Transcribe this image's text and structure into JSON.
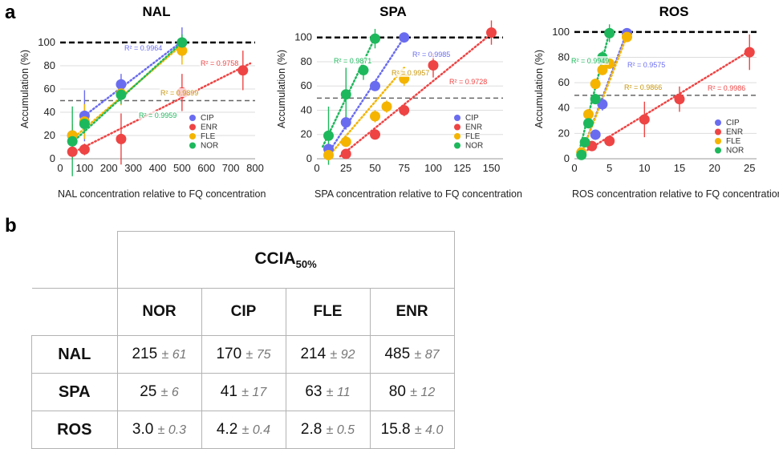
{
  "panel_labels": {
    "a": "a",
    "b": "b"
  },
  "colors": {
    "CIP": "#6a6cf0",
    "ENR": "#ee4444",
    "FLE": "#f4b400",
    "NOR": "#1eb85c",
    "FLE_r2": "#c8960a",
    "ref100": "#000000",
    "ref50": "#666666"
  },
  "legend_order": [
    "CIP",
    "ENR",
    "FLE",
    "NOR"
  ],
  "chart_data": [
    {
      "type": "scatter",
      "title": "NAL",
      "xlabel": "NAL concentration relative to FQ concentration",
      "ylabel": "Accumulation (%)",
      "xlim": [
        0,
        800
      ],
      "ylim": [
        0,
        120
      ],
      "xticks": [
        0,
        100,
        200,
        300,
        400,
        500,
        600,
        700,
        800
      ],
      "yticks": [
        0,
        20,
        40,
        60,
        80,
        100
      ],
      "reference_lines": [
        100,
        50
      ],
      "legend_position": "center-right",
      "series": [
        {
          "name": "CIP",
          "r2": "R² = 0.9964",
          "fit": [
            [
              100,
              37
            ],
            [
              500,
              101
            ]
          ],
          "points": [
            {
              "x": 50,
              "y": 20,
              "err": 3
            },
            {
              "x": 100,
              "y": 37,
              "err": 22
            },
            {
              "x": 250,
              "y": 64,
              "err": 9
            },
            {
              "x": 500,
              "y": 100,
              "err": 13
            }
          ]
        },
        {
          "name": "ENR",
          "r2": "R² = 0.9758",
          "fit": [
            [
              50,
              5
            ],
            [
              780,
              82
            ]
          ],
          "points": [
            {
              "x": 50,
              "y": 6,
              "err": 6
            },
            {
              "x": 100,
              "y": 8,
              "err": 5
            },
            {
              "x": 250,
              "y": 17,
              "err": 22
            },
            {
              "x": 500,
              "y": 57,
              "err": 16
            },
            {
              "x": 750,
              "y": 76,
              "err": 17
            }
          ]
        },
        {
          "name": "FLE",
          "r2": "R² = 0.9899",
          "fit": [
            [
              50,
              17
            ],
            [
              500,
              98
            ]
          ],
          "points": [
            {
              "x": 50,
              "y": 20,
              "err": 10
            },
            {
              "x": 100,
              "y": 32,
              "err": 15
            },
            {
              "x": 250,
              "y": 56,
              "err": 10
            },
            {
              "x": 500,
              "y": 93,
              "err": 12
            }
          ]
        },
        {
          "name": "NOR",
          "r2": "R² = 0.9959",
          "fit": [
            [
              50,
              14
            ],
            [
              500,
              100
            ]
          ],
          "points": [
            {
              "x": 50,
              "y": 15,
              "err": 30
            },
            {
              "x": 100,
              "y": 30,
              "err": 8
            },
            {
              "x": 250,
              "y": 55,
              "err": 8
            },
            {
              "x": 500,
              "y": 100,
              "err": 7
            }
          ]
        }
      ]
    },
    {
      "type": "scatter",
      "title": "SPA",
      "xlabel": "SPA concentration relative to FQ concentration",
      "ylabel": "Accumulation (%)",
      "xlim": [
        0,
        160
      ],
      "ylim": [
        0,
        115
      ],
      "xticks": [
        0,
        25,
        50,
        75,
        100,
        125,
        150
      ],
      "yticks": [
        0,
        20,
        40,
        60,
        80,
        100
      ],
      "reference_lines": [
        100,
        50
      ],
      "legend_position": "bottom-right",
      "series": [
        {
          "name": "CIP",
          "r2": "R² = 0.9985",
          "fit": [
            [
              10,
              5
            ],
            [
              75,
              100
            ]
          ],
          "points": [
            {
              "x": 10,
              "y": 8,
              "err": 5
            },
            {
              "x": 25,
              "y": 30,
              "err": 6
            },
            {
              "x": 50,
              "y": 60,
              "err": 4
            },
            {
              "x": 75,
              "y": 100,
              "err": 3
            }
          ]
        },
        {
          "name": "ENR",
          "r2": "R² = 0.9728",
          "fit": [
            [
              20,
              2
            ],
            [
              150,
              103
            ]
          ],
          "points": [
            {
              "x": 25,
              "y": 4,
              "err": 3
            },
            {
              "x": 50,
              "y": 20,
              "err": 4
            },
            {
              "x": 75,
              "y": 40,
              "err": 5
            },
            {
              "x": 100,
              "y": 77,
              "err": 10
            },
            {
              "x": 150,
              "y": 104,
              "err": 10
            }
          ]
        },
        {
          "name": "FLE",
          "r2": "R² = 0.9957",
          "fit": [
            [
              10,
              2
            ],
            [
              75,
              75
            ]
          ],
          "points": [
            {
              "x": 10,
              "y": 3,
              "err": 3
            },
            {
              "x": 25,
              "y": 14,
              "err": 4
            },
            {
              "x": 50,
              "y": 35,
              "err": 5
            },
            {
              "x": 60,
              "y": 43,
              "err": 5
            },
            {
              "x": 75,
              "y": 66,
              "err": 6
            }
          ]
        },
        {
          "name": "NOR",
          "r2": "R² = 0.9871",
          "fit": [
            [
              5,
              10
            ],
            [
              50,
              100
            ]
          ],
          "points": [
            {
              "x": 10,
              "y": 19,
              "err": 24
            },
            {
              "x": 25,
              "y": 53,
              "err": 22
            },
            {
              "x": 40,
              "y": 73,
              "err": 8
            },
            {
              "x": 50,
              "y": 99,
              "err": 8
            }
          ]
        }
      ]
    },
    {
      "type": "scatter",
      "title": "ROS",
      "xlabel": "ROS concentration relative to FQ concentration",
      "ylabel": "Accumulation (%)",
      "xlim": [
        0,
        26
      ],
      "ylim": [
        0,
        110
      ],
      "xticks": [
        0,
        5,
        10,
        15,
        20,
        25
      ],
      "yticks": [
        0,
        20,
        40,
        60,
        80,
        100
      ],
      "reference_lines": [
        100,
        50
      ],
      "legend_position": "bottom-right",
      "series": [
        {
          "name": "CIP",
          "r2": "R² = 0.9575",
          "fit": [
            [
              1,
              4
            ],
            [
              7.5,
              100
            ]
          ],
          "points": [
            {
              "x": 3,
              "y": 19,
              "err": 4
            },
            {
              "x": 4,
              "y": 43,
              "err": 5
            },
            {
              "x": 7.5,
              "y": 99,
              "err": 4
            }
          ]
        },
        {
          "name": "ENR",
          "r2": "R² = 0.9986",
          "fit": [
            [
              1,
              4
            ],
            [
              25,
              85
            ]
          ],
          "points": [
            {
              "x": 2.5,
              "y": 10,
              "err": 4
            },
            {
              "x": 5,
              "y": 14,
              "err": 4
            },
            {
              "x": 10,
              "y": 31,
              "err": 14
            },
            {
              "x": 15,
              "y": 47,
              "err": 10
            },
            {
              "x": 25,
              "y": 84,
              "err": 14
            }
          ]
        },
        {
          "name": "FLE",
          "r2": "R² = 0.9866",
          "fit": [
            [
              1,
              4
            ],
            [
              7.5,
              97
            ]
          ],
          "points": [
            {
              "x": 1,
              "y": 5,
              "err": 3
            },
            {
              "x": 2,
              "y": 35,
              "err": 4
            },
            {
              "x": 3,
              "y": 59,
              "err": 4
            },
            {
              "x": 4,
              "y": 70,
              "err": 4
            },
            {
              "x": 5,
              "y": 75,
              "err": 4
            },
            {
              "x": 7.5,
              "y": 96,
              "err": 3
            }
          ]
        },
        {
          "name": "NOR",
          "r2": "R² = 0.9949",
          "fit": [
            [
              0.5,
              2
            ],
            [
              5,
              100
            ]
          ],
          "points": [
            {
              "x": 1,
              "y": 3,
              "err": 2
            },
            {
              "x": 1.5,
              "y": 13,
              "err": 4
            },
            {
              "x": 2,
              "y": 28,
              "err": 4
            },
            {
              "x": 3,
              "y": 47,
              "err": 4
            },
            {
              "x": 4,
              "y": 80,
              "err": 5
            },
            {
              "x": 5,
              "y": 99,
              "err": 7
            }
          ]
        }
      ]
    }
  ],
  "table": {
    "header": "CCIA",
    "header_sub": "50%",
    "columns": [
      "NOR",
      "CIP",
      "FLE",
      "ENR"
    ],
    "rows": [
      {
        "label": "NAL",
        "cells": [
          {
            "v": "215",
            "e": "± 61"
          },
          {
            "v": "170",
            "e": "± 75"
          },
          {
            "v": "214",
            "e": "± 92"
          },
          {
            "v": "485",
            "e": "± 87"
          }
        ]
      },
      {
        "label": "SPA",
        "cells": [
          {
            "v": "25",
            "e": "± 6"
          },
          {
            "v": "41",
            "e": "± 17"
          },
          {
            "v": "63",
            "e": "± 11"
          },
          {
            "v": "80",
            "e": "± 12"
          }
        ]
      },
      {
        "label": "ROS",
        "cells": [
          {
            "v": "3.0",
            "e": "± 0.3"
          },
          {
            "v": "4.2",
            "e": "± 0.4"
          },
          {
            "v": "2.8",
            "e": "± 0.5"
          },
          {
            "v": "15.8",
            "e": "± 4.0"
          }
        ]
      }
    ]
  }
}
